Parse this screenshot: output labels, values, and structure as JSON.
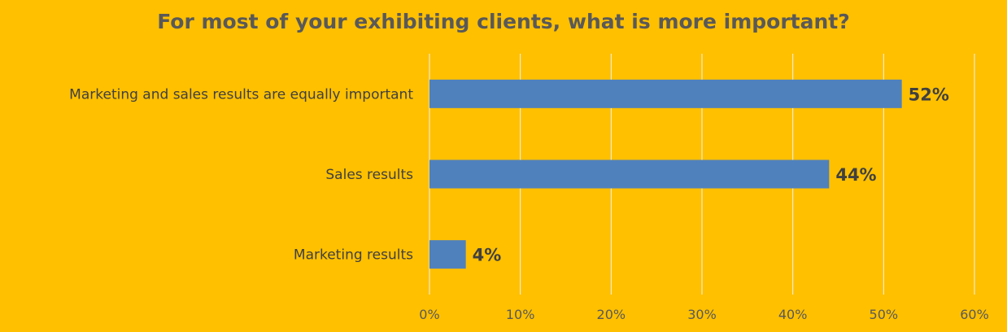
{
  "colors": {
    "background": "#FFC000",
    "bar": "#4F81BD",
    "gridline": "#F2F2F2",
    "title": "#595959",
    "text": "#404040"
  },
  "chart_data": {
    "type": "bar",
    "orientation": "horizontal",
    "title": "For most of your exhibiting clients, what is more important?",
    "categories": [
      "Marketing and sales results are equally important",
      "Sales results",
      "Marketing results"
    ],
    "values": [
      52,
      44,
      4
    ],
    "data_labels": [
      "52%",
      "44%",
      "4%"
    ],
    "xlim": [
      0,
      60
    ],
    "x_ticks": [
      0,
      10,
      20,
      30,
      40,
      50,
      60
    ],
    "x_tick_labels": [
      "0%",
      "10%",
      "20%",
      "30%",
      "40%",
      "50%",
      "60%"
    ],
    "xlabel": "",
    "ylabel": "",
    "grid": true,
    "legend": "none"
  }
}
